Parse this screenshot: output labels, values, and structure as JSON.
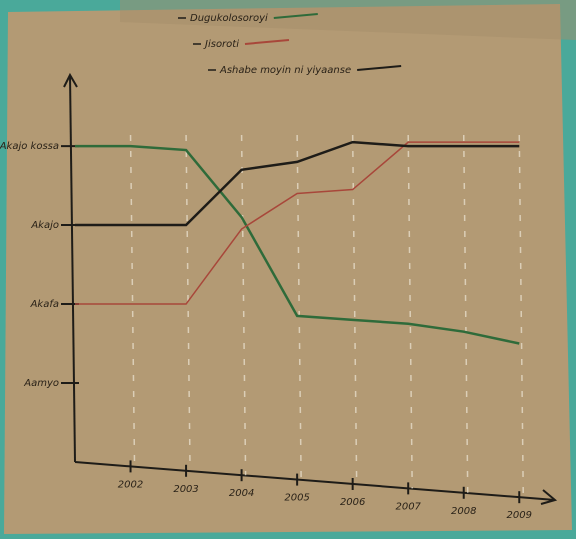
{
  "chart_data": {
    "type": "line",
    "x": [
      2001,
      2002,
      2003,
      2004,
      2005,
      2006,
      2007,
      2008,
      2009
    ],
    "xlim": [
      2001,
      2010
    ],
    "xticks": [
      2002,
      2003,
      2004,
      2005,
      2006,
      2007,
      2008,
      2009
    ],
    "ylim": [
      0,
      4.9
    ],
    "yticks": [
      {
        "value": 1,
        "label": "Aamyo"
      },
      {
        "value": 2,
        "label": "Akafa"
      },
      {
        "value": 3,
        "label": "Akajo"
      },
      {
        "value": 4,
        "label": "Akajo kossa"
      }
    ],
    "legend": "top",
    "series": [
      {
        "name": "Dugukolosoroyi",
        "color": "#2f6b3a",
        "values": [
          4.0,
          4.0,
          3.95,
          3.1,
          1.85,
          1.8,
          1.75,
          1.65,
          1.5
        ]
      },
      {
        "name": "Jisoroti",
        "color": "#a8473a",
        "values": [
          2.0,
          2.0,
          2.0,
          2.95,
          3.4,
          3.45,
          4.05,
          4.05,
          4.05
        ]
      },
      {
        "name": "Ashabe moyin ni yiyaanse",
        "color": "#1e1c18",
        "values": [
          3.0,
          3.0,
          3.0,
          3.7,
          3.8,
          4.05,
          4.0,
          4.0,
          4.0
        ]
      }
    ]
  }
}
